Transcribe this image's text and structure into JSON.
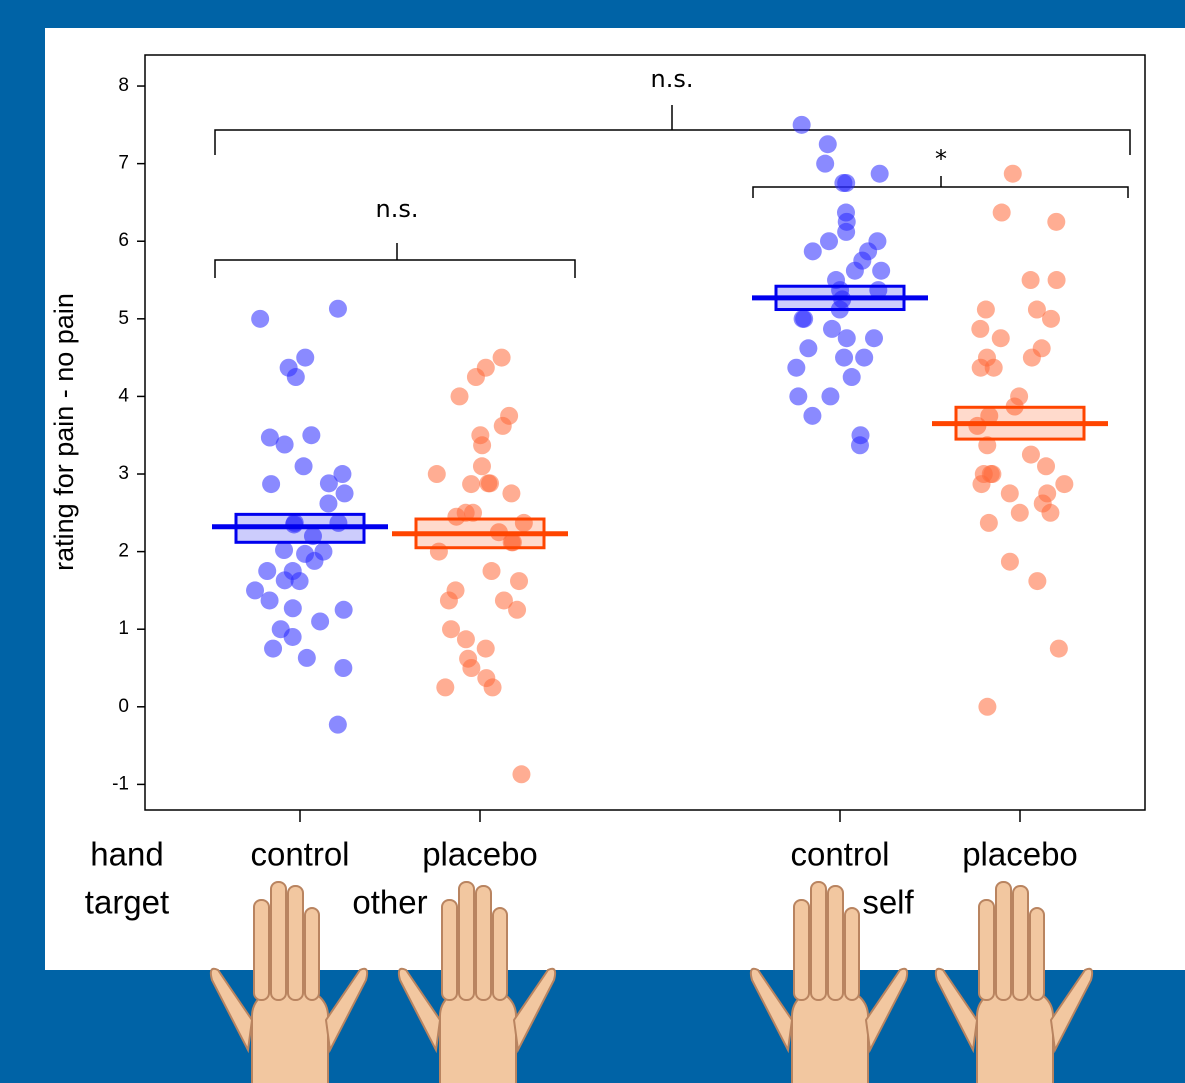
{
  "chart_data": {
    "type": "strip",
    "y_label": "rating for pain - no pain",
    "row_labels": [
      "hand",
      "target"
    ],
    "categories": [
      "control",
      "placebo",
      "control",
      "placebo"
    ],
    "groups": [
      "other",
      "self"
    ],
    "colors": [
      "#2a2aff",
      "#ff6a3a",
      "#2a2aff",
      "#ff6a3a"
    ],
    "mean_colors": [
      "#0000ee",
      "#ff4500",
      "#0000ee",
      "#ff4500"
    ],
    "values": [
      [
        5.13,
        5.0,
        4.5,
        4.37,
        4.25,
        3.5,
        3.47,
        3.38,
        3.1,
        3.0,
        2.88,
        2.87,
        2.75,
        2.62,
        2.37,
        2.37,
        2.35,
        2.2,
        2.02,
        2.0,
        1.97,
        1.88,
        1.75,
        1.75,
        1.63,
        1.62,
        1.5,
        1.37,
        1.27,
        1.25,
        1.1,
        1.0,
        0.9,
        0.75,
        0.63,
        0.5,
        -0.23
      ],
      [
        4.5,
        4.37,
        4.25,
        4.0,
        3.75,
        3.62,
        3.5,
        3.37,
        3.1,
        3.0,
        2.88,
        2.88,
        2.87,
        2.75,
        2.5,
        2.5,
        2.45,
        2.37,
        2.25,
        2.12,
        2.12,
        2.0,
        1.75,
        1.62,
        1.5,
        1.37,
        1.37,
        1.25,
        1.0,
        0.87,
        0.75,
        0.62,
        0.5,
        0.37,
        0.25,
        0.25,
        -0.87
      ],
      [
        7.5,
        7.25,
        7.0,
        6.87,
        6.75,
        6.75,
        6.37,
        6.25,
        6.12,
        6.0,
        6.0,
        5.87,
        5.87,
        5.75,
        5.62,
        5.62,
        5.5,
        5.37,
        5.37,
        5.25,
        5.12,
        5.0,
        5.0,
        4.87,
        4.75,
        4.75,
        4.62,
        4.5,
        4.5,
        4.37,
        4.25,
        4.0,
        4.0,
        3.75,
        3.5,
        3.37
      ],
      [
        6.87,
        6.37,
        6.25,
        5.5,
        5.5,
        5.12,
        5.12,
        5.0,
        4.87,
        4.75,
        4.62,
        4.5,
        4.5,
        4.37,
        4.37,
        4.0,
        3.87,
        3.75,
        3.62,
        3.37,
        3.25,
        3.1,
        3.0,
        3.0,
        3.0,
        2.87,
        2.87,
        2.75,
        2.75,
        2.62,
        2.5,
        2.5,
        2.37,
        1.87,
        1.62,
        0.75,
        0.0
      ]
    ],
    "means": [
      2.32,
      2.23,
      5.27,
      3.65
    ],
    "ci_low": [
      2.12,
      2.05,
      5.12,
      3.45
    ],
    "ci_high": [
      2.48,
      2.42,
      5.42,
      3.86
    ],
    "ylim": [
      -1.33,
      8.4
    ],
    "yticks": [
      -1,
      0,
      1,
      2,
      3,
      4,
      5,
      6,
      7,
      8
    ],
    "annotations": [
      "n.s.",
      "n.s.",
      "*"
    ]
  }
}
